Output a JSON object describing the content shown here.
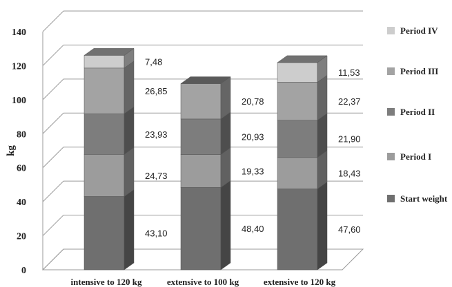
{
  "chart_data": {
    "type": "bar",
    "stacked": true,
    "three_d": true,
    "categories": [
      "intensive to 120 kg",
      "extensive to 100 kg",
      "extensive to 120 kg"
    ],
    "ylabel": "kg",
    "ylim": [
      0,
      140
    ],
    "yticks": [
      "0",
      "20",
      "40",
      "60",
      "80",
      "100",
      "120",
      "140"
    ],
    "grid": true,
    "legend_position": "right",
    "series": [
      {
        "name": "Start weight",
        "color": "#6f6f6f",
        "values": [
          43.1,
          48.4,
          47.6
        ],
        "labels": [
          "43,10",
          "48,40",
          "47,60"
        ]
      },
      {
        "name": "Period I",
        "color": "#9c9c9c",
        "values": [
          24.73,
          19.33,
          18.43
        ],
        "labels": [
          "24,73",
          "19,33",
          "18,43"
        ]
      },
      {
        "name": "Period II",
        "color": "#7d7d7d",
        "values": [
          23.93,
          20.93,
          21.9
        ],
        "labels": [
          "23,93",
          "20,93",
          "21,90"
        ]
      },
      {
        "name": "Period III",
        "color": "#a3a3a3",
        "values": [
          26.85,
          20.78,
          22.37
        ],
        "labels": [
          "26,85",
          "20,78",
          "22,37"
        ]
      },
      {
        "name": "Period IV",
        "color": "#cdcdcd",
        "values": [
          7.48,
          null,
          11.53
        ],
        "labels": [
          "7,48",
          "",
          "11,53"
        ]
      }
    ],
    "legend_order": [
      "Period IV",
      "Period III",
      "Period II",
      "Period I",
      "Start weight"
    ]
  }
}
